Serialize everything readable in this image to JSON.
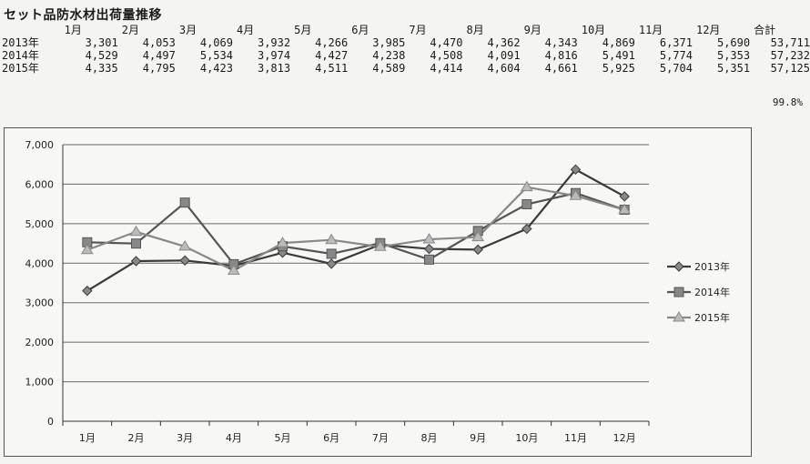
{
  "title": "セット品防水材出荷量推移",
  "table": {
    "columns": [
      "1月",
      "2月",
      "3月",
      "4月",
      "5月",
      "6月",
      "7月",
      "8月",
      "9月",
      "10月",
      "11月",
      "12月",
      "合計"
    ],
    "rows": [
      {
        "label": "2013年",
        "values": [
          "3,301",
          "4,053",
          "4,069",
          "3,932",
          "4,266",
          "3,985",
          "4,470",
          "4,362",
          "4,343",
          "4,869",
          "6,371",
          "5,690",
          "53,711"
        ]
      },
      {
        "label": "2014年",
        "values": [
          "4,529",
          "4,497",
          "5,534",
          "3,974",
          "4,427",
          "4,238",
          "4,508",
          "4,091",
          "4,816",
          "5,491",
          "5,774",
          "5,353",
          "57,232"
        ]
      },
      {
        "label": "2015年",
        "values": [
          "4,335",
          "4,795",
          "4,423",
          "3,813",
          "4,511",
          "4,589",
          "4,414",
          "4,604",
          "4,661",
          "5,925",
          "5,704",
          "5,351",
          "57,125"
        ]
      }
    ],
    "ratio": "99.8%"
  },
  "chart_data": {
    "type": "line",
    "categories": [
      "1月",
      "2月",
      "3月",
      "4月",
      "5月",
      "6月",
      "7月",
      "8月",
      "9月",
      "10月",
      "11月",
      "12月"
    ],
    "series": [
      {
        "name": "2013年",
        "marker": "diamond",
        "color": "#3a3a3a",
        "values": [
          3301,
          4053,
          4069,
          3932,
          4266,
          3985,
          4470,
          4362,
          4343,
          4869,
          6371,
          5690
        ]
      },
      {
        "name": "2014年",
        "marker": "square",
        "color": "#555555",
        "values": [
          4529,
          4497,
          5534,
          3974,
          4427,
          4238,
          4508,
          4091,
          4816,
          5491,
          5774,
          5353
        ]
      },
      {
        "name": "2015年",
        "marker": "triangle",
        "color": "#888888",
        "values": [
          4335,
          4795,
          4423,
          3813,
          4511,
          4589,
          4414,
          4604,
          4661,
          5925,
          5704,
          5351
        ]
      }
    ],
    "yticks": [
      "0",
      "1,000",
      "2,000",
      "3,000",
      "4,000",
      "5,000",
      "6,000",
      "7,000"
    ],
    "ylim": [
      0,
      7000
    ],
    "grid": true,
    "legend_position": "right"
  }
}
